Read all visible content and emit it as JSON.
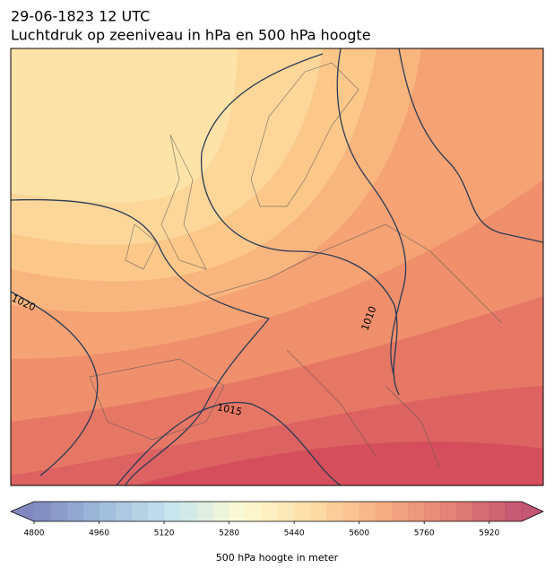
{
  "title": "29-06-1823 12 UTC",
  "subtitle": "Luchtdruk op zeeniveau in hPa en 500 hPa hoogte",
  "map": {
    "contour_labels": [
      "1020",
      "1010",
      "1015"
    ]
  },
  "colorbar": {
    "label": "500 hPa hoogte in meter",
    "lim": [
      4800,
      6000
    ],
    "step": 40,
    "ticks": [
      4800,
      4960,
      5120,
      5280,
      5440,
      5600,
      5760,
      5920
    ],
    "colormap": [
      "#6b73b5",
      "#8fb3d6",
      "#bfe0ec",
      "#fdfbcb",
      "#fdd596",
      "#f4a06f",
      "#de6a5e",
      "#b8385a"
    ]
  }
}
